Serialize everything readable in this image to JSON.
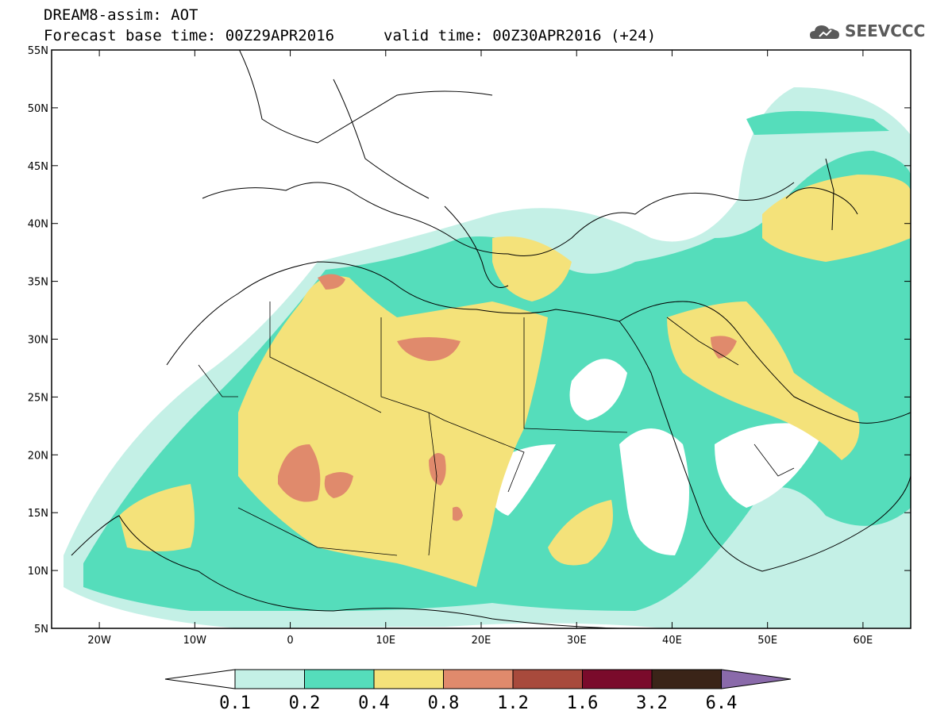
{
  "header": {
    "title_line1": "DREAM8-assim: AOT",
    "title_line2": "Forecast base time: 00Z29APR2016",
    "valid_text": "valid time: 00Z30APR2016 (+24)"
  },
  "logo": {
    "text": "SEEVCCC",
    "icon": "cloud-logo-icon"
  },
  "axes": {
    "lat_labels": [
      "55N",
      "50N",
      "45N",
      "40N",
      "35N",
      "30N",
      "25N",
      "20N",
      "15N",
      "10N",
      "5N"
    ],
    "lon_labels": [
      "20W",
      "10W",
      "0",
      "10E",
      "20E",
      "30E",
      "40E",
      "50E",
      "60E"
    ],
    "lat_values": [
      55,
      50,
      45,
      40,
      35,
      30,
      25,
      20,
      15,
      10,
      5
    ],
    "lon_values": [
      -20,
      -10,
      0,
      10,
      20,
      30,
      40,
      50,
      60
    ],
    "lon_range": [
      -25,
      65
    ],
    "lat_range": [
      5,
      55
    ]
  },
  "colorbar": {
    "labels": [
      "0.1",
      "0.2",
      "0.4",
      "0.8",
      "1.2",
      "1.6",
      "3.2",
      "6.4"
    ],
    "colors": [
      "#ffffff",
      "#c4f0e6",
      "#55ddbb",
      "#f4e27a",
      "#e08a6c",
      "#a84a3c",
      "#7a0b2b",
      "#3a2418",
      "#8a6aaa"
    ]
  },
  "chart_data": {
    "type": "heatmap",
    "title": "DREAM8-assim: AOT",
    "subtitle": "Forecast base time: 00Z29APR2016   valid time: 00Z30APR2016 (+24)",
    "xlabel": "",
    "ylabel": "",
    "xlim": [
      -25,
      65
    ],
    "ylim": [
      5,
      55
    ],
    "levels": [
      0.1,
      0.2,
      0.4,
      0.8,
      1.2,
      1.6,
      3.2,
      6.4
    ],
    "legend": "bottom"
  }
}
